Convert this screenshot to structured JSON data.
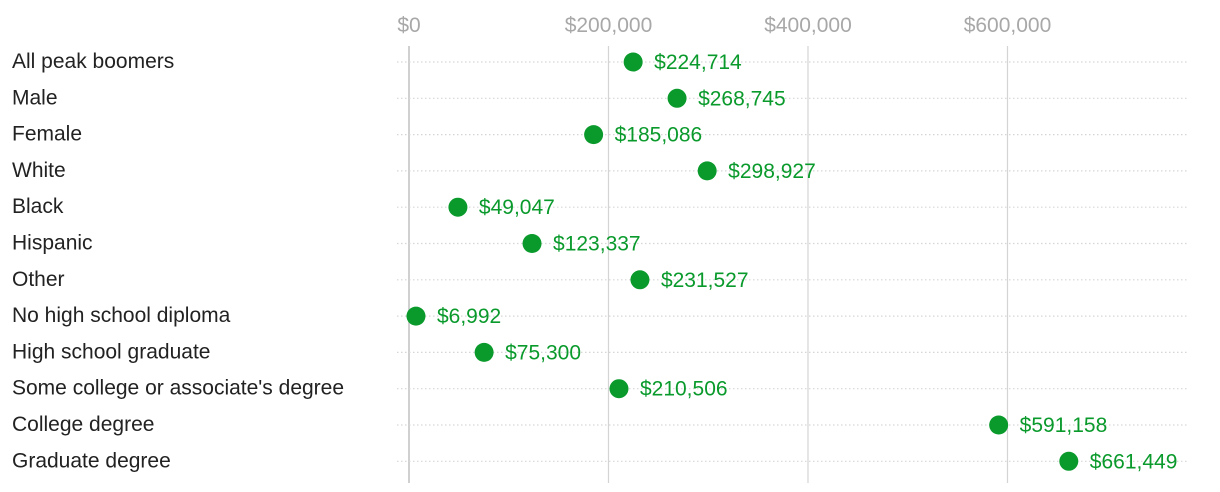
{
  "chart_data": {
    "type": "scatter",
    "orientation": "horizontal-dot",
    "title": "",
    "xlabel": "",
    "ylabel": "",
    "xlim": [
      0,
      780000
    ],
    "x_ticks": [
      0,
      200000,
      400000,
      600000
    ],
    "x_tick_labels": [
      "$0",
      "$200,000",
      "$400,000",
      "$600,000"
    ],
    "grid": true,
    "legend": "none",
    "categories": [
      "All peak boomers",
      "Male",
      "Female",
      "White",
      "Black",
      "Hispanic",
      "Other",
      "No high school diploma",
      "High school graduate",
      "Some college or associate's degree",
      "College degree",
      "Graduate degree"
    ],
    "values": [
      224714,
      268745,
      185086,
      298927,
      49047,
      123337,
      231527,
      6992,
      75300,
      210506,
      591158,
      661449
    ],
    "value_labels": [
      "$224,714",
      "$268,745",
      "$185,086",
      "$298,927",
      "$49,047",
      "$123,337",
      "$231,527",
      "$6,992",
      "$75,300",
      "$210,506",
      "$591,158",
      "$661,449"
    ],
    "colors": {
      "point": "#0a9a2c",
      "grid": "#d4d4d4",
      "zero_line": "#c4c4c4",
      "row_line": "#d6d6d6"
    }
  }
}
